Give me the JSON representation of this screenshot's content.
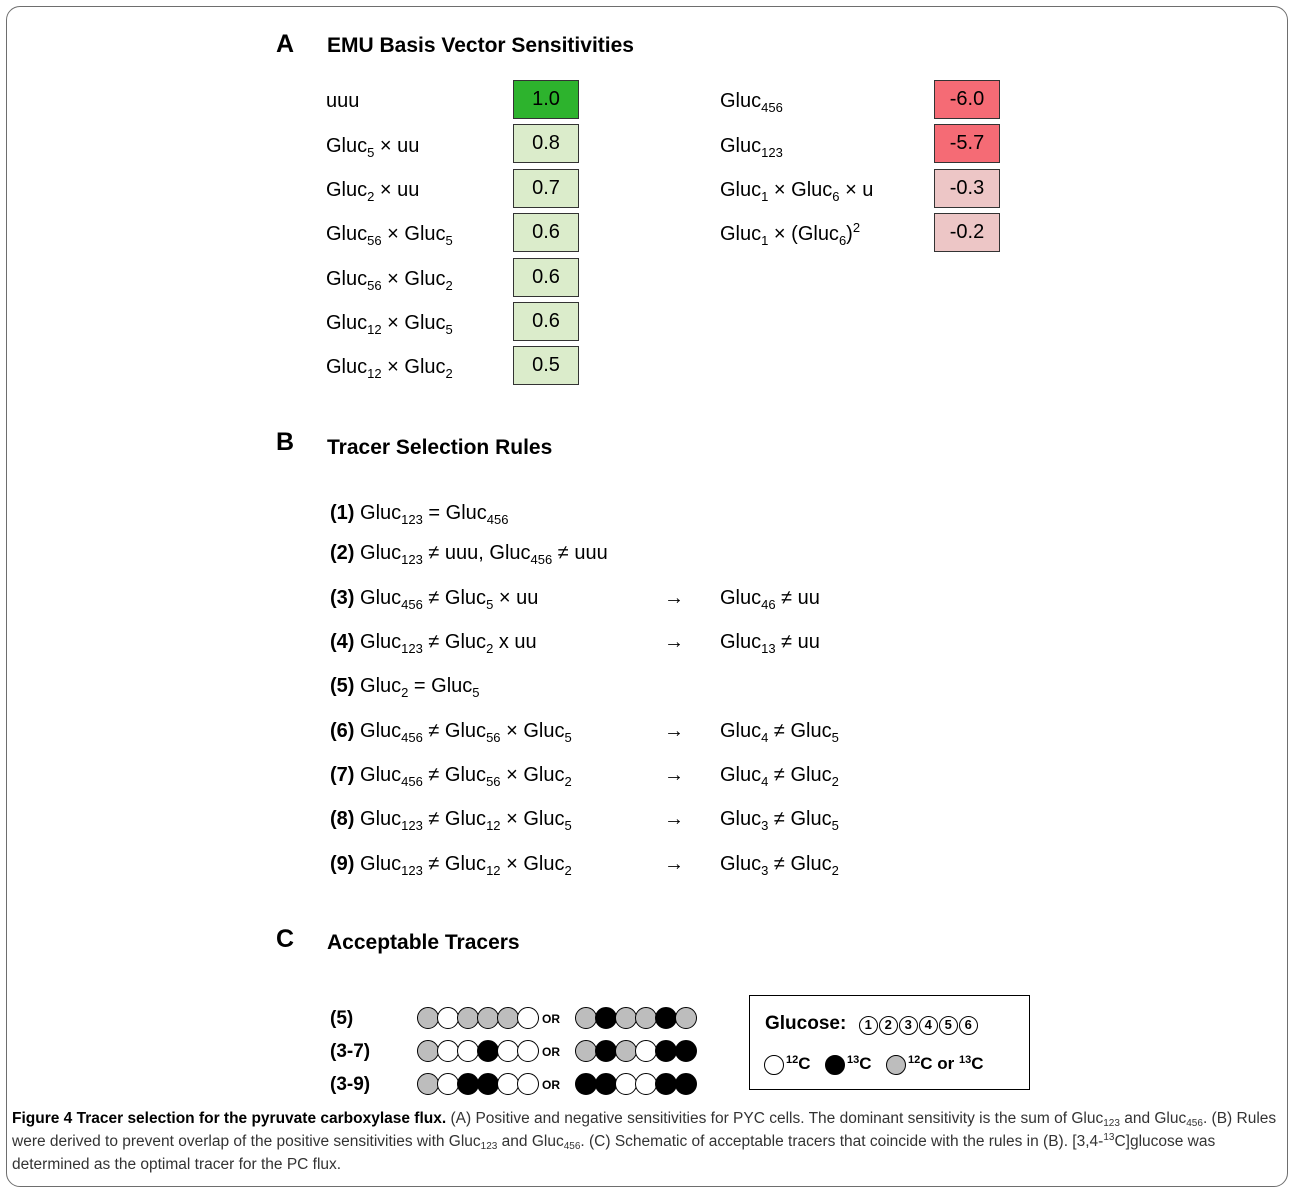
{
  "sectionA": {
    "letter": "A",
    "title": "EMU Basis Vector Sensitivities",
    "positive": [
      {
        "value": "1.0",
        "color": "#2db32d"
      },
      {
        "value": "0.8",
        "color": "#dbeccb"
      },
      {
        "value": "0.7",
        "color": "#dbeccb"
      },
      {
        "value": "0.6",
        "color": "#dbeccb"
      },
      {
        "value": "0.6",
        "color": "#dbeccb"
      },
      {
        "value": "0.6",
        "color": "#dbeccb"
      },
      {
        "value": "0.5",
        "color": "#dbeccb"
      }
    ],
    "negative": [
      {
        "value": "-6.0",
        "color": "#f56b75"
      },
      {
        "value": "-5.7",
        "color": "#f56b75"
      },
      {
        "value": "-0.3",
        "color": "#edc6c6"
      },
      {
        "value": "-0.2",
        "color": "#edc6c6"
      }
    ]
  },
  "sectionB": {
    "letter": "B",
    "title": "Tracer Selection Rules",
    "arrow": "→"
  },
  "sectionC": {
    "letter": "C",
    "title": "Acceptable Tracers",
    "or_label": "OR",
    "tracers": [
      {
        "label": "(5)",
        "left": [
          "gray",
          "white",
          "gray",
          "gray",
          "gray",
          "white"
        ],
        "right": [
          "gray",
          "black",
          "gray",
          "gray",
          "black",
          "gray"
        ]
      },
      {
        "label": "(3-7)",
        "left": [
          "gray",
          "white",
          "white",
          "black",
          "white",
          "white"
        ],
        "right": [
          "gray",
          "black",
          "gray",
          "white",
          "black",
          "black"
        ]
      },
      {
        "label": "(3-9)",
        "left": [
          "gray",
          "white",
          "black",
          "black",
          "white",
          "white"
        ],
        "right": [
          "black",
          "black",
          "white",
          "white",
          "black",
          "black"
        ]
      }
    ],
    "legend": {
      "title": "Glucose:",
      "carbons": [
        "1",
        "2",
        "3",
        "4",
        "5",
        "6"
      ],
      "items": [
        {
          "color": "white"
        },
        {
          "color": "black"
        },
        {
          "color": "gray"
        }
      ]
    },
    "colors": {
      "white": "#ffffff",
      "black": "#000000",
      "gray": "#bdbdbd"
    }
  },
  "caption": {
    "label": "Figure 4 Tracer selection for the pyruvate carboxylase flux."
  }
}
